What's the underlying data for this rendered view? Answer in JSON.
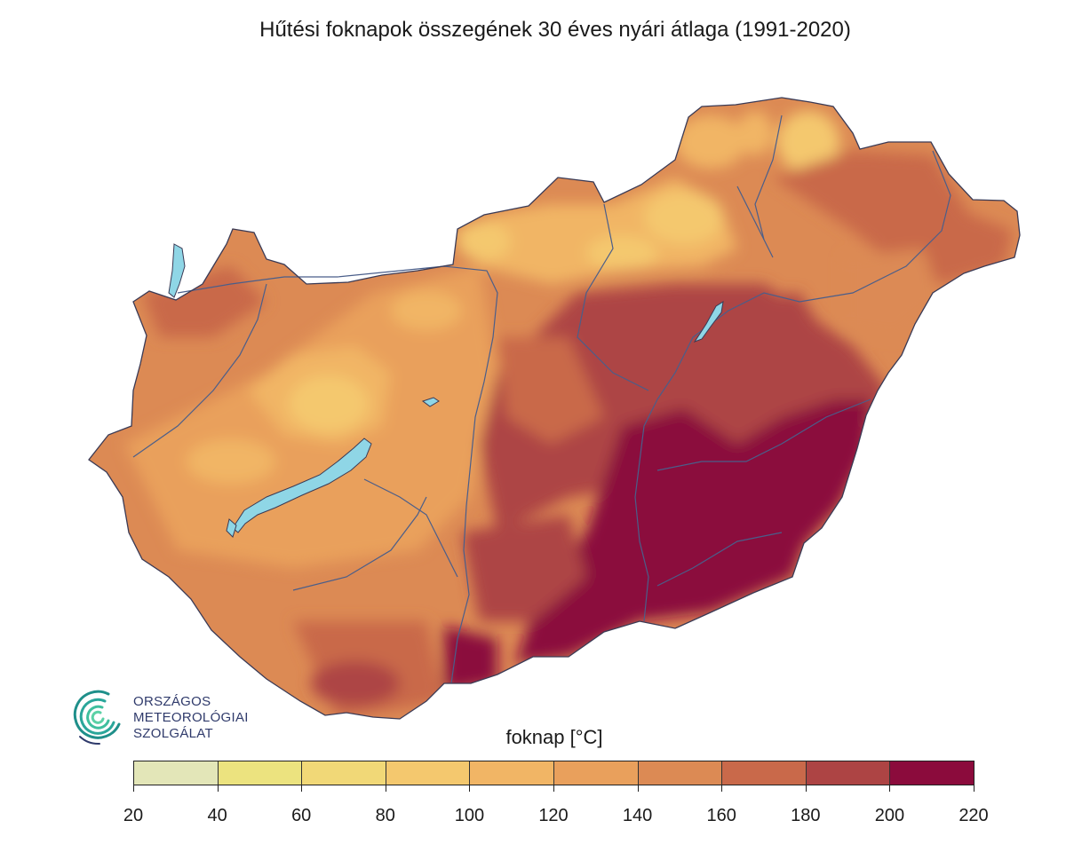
{
  "title": "Hűtési foknapok összegének 30 éves nyári átlaga (1991-2020)",
  "logo": {
    "name": "logo-omsz",
    "lines": [
      "ORSZÁGOS",
      "METEOROLÓGIAI",
      "SZOLGÁLAT"
    ]
  },
  "legend": {
    "title": "foknap [°C]",
    "ticks": [
      "20",
      "40",
      "60",
      "80",
      "100",
      "120",
      "140",
      "160",
      "180",
      "200",
      "220"
    ],
    "colors": [
      "#e3e6b8",
      "#ece37f",
      "#f1d877",
      "#f4c86e",
      "#f1b565",
      "#e9a05c",
      "#dc8a54",
      "#c9694a",
      "#ad4444",
      "#8b0b3c"
    ]
  },
  "map_colors": {
    "water": "#8fd6e6",
    "river": "#4a5e8a",
    "border": "#3a3a55"
  }
}
